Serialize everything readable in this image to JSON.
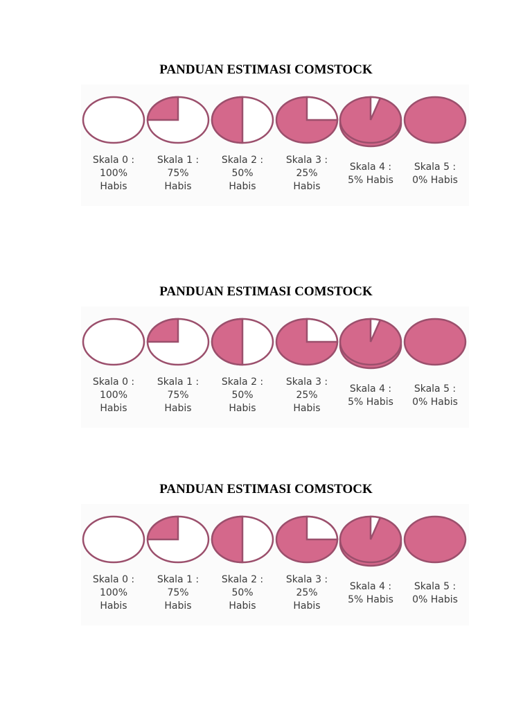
{
  "panels": [
    {
      "title": "PANDUAN ESTIMASI COMSTOCK",
      "items": [
        {
          "lines": [
            "Skala 0 :",
            "100%",
            "Habis"
          ]
        },
        {
          "lines": [
            "Skala 1 :",
            "75%",
            "Habis"
          ]
        },
        {
          "lines": [
            "Skala 2 :",
            "50%",
            "Habis"
          ]
        },
        {
          "lines": [
            "Skala 3 :",
            "25%",
            "Habis"
          ]
        },
        {
          "lines": [
            "Skala 4 :",
            "5% Habis"
          ]
        },
        {
          "lines": [
            "Skala 5 :",
            "0% Habis"
          ]
        }
      ]
    },
    {
      "title": "PANDUAN ESTIMASI COMSTOCK",
      "items": [
        {
          "lines": [
            "Skala 0 :",
            "100%",
            "Habis"
          ]
        },
        {
          "lines": [
            "Skala 1 :",
            "75%",
            "Habis"
          ]
        },
        {
          "lines": [
            "Skala 2 :",
            "50%",
            "Habis"
          ]
        },
        {
          "lines": [
            "Skala 3 :",
            "25%",
            "Habis"
          ]
        },
        {
          "lines": [
            "Skala 4 :",
            "5% Habis"
          ]
        },
        {
          "lines": [
            "Skala 5 :",
            "0% Habis"
          ]
        }
      ]
    },
    {
      "title": "PANDUAN ESTIMASI COMSTOCK",
      "items": [
        {
          "lines": [
            "Skala 0 :",
            "100%",
            "Habis"
          ]
        },
        {
          "lines": [
            "Skala 1 :",
            "75%",
            "Habis"
          ]
        },
        {
          "lines": [
            "Skala 2 :",
            "50%",
            "Habis"
          ]
        },
        {
          "lines": [
            "Skala 3 :",
            "25%",
            "Habis"
          ]
        },
        {
          "lines": [
            "Skala 4 :",
            "5% Habis"
          ]
        },
        {
          "lines": [
            "Skala 5 :",
            "0% Habis"
          ]
        }
      ]
    }
  ]
}
